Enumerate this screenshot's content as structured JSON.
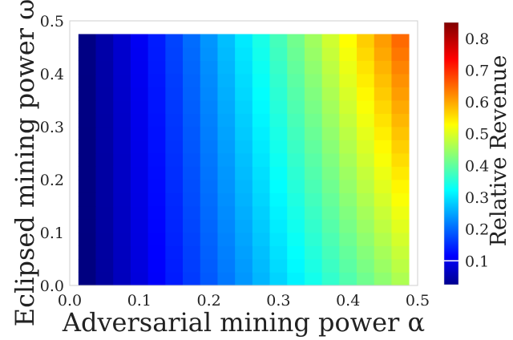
{
  "chart_data": {
    "type": "heatmap",
    "title": "",
    "xlabel": "Adversarial mining power α",
    "ylabel": "Eclipsed mining power ω",
    "colorbar_label": "Relative Revenue",
    "colormap": "jet",
    "xlim": [
      0.0,
      0.5
    ],
    "ylim": [
      0.0,
      0.5
    ],
    "x_ticks": [
      "0.0",
      "0.1",
      "0.2",
      "0.3",
      "0.4",
      "0.5"
    ],
    "y_ticks": [
      "0.0",
      "0.1",
      "0.2",
      "0.3",
      "0.4",
      "0.5"
    ],
    "colorbar_range": [
      0.025,
      0.85
    ],
    "colorbar_ticks": [
      "0.1",
      "0.2",
      "0.3",
      "0.4",
      "0.5",
      "0.6",
      "0.7",
      "0.8"
    ],
    "colorbar_marker_value": 0.1,
    "grid": false,
    "x": [
      0.025,
      0.05,
      0.075,
      0.1,
      0.125,
      0.15,
      0.175,
      0.2,
      0.225,
      0.25,
      0.275,
      0.3,
      0.325,
      0.35,
      0.375,
      0.4,
      0.425,
      0.45,
      0.475
    ],
    "y": [
      0.0,
      0.025,
      0.05,
      0.075,
      0.1,
      0.125,
      0.15,
      0.175,
      0.2,
      0.225,
      0.25,
      0.275,
      0.3,
      0.325,
      0.35,
      0.375,
      0.4,
      0.425,
      0.45
    ],
    "value_model": "relative revenue ≈ α·(1 + ω·(0.3 + 1.2·α)), estimated from colors"
  }
}
